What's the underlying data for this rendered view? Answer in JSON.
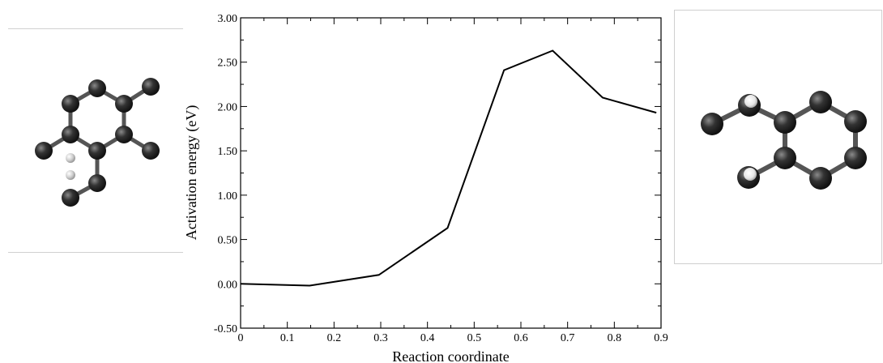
{
  "chart_data": {
    "type": "line",
    "title": "",
    "xlabel": "Reaction coordinate",
    "ylabel": "Activation energy (eV)",
    "xlim": [
      0,
      0.9
    ],
    "ylim": [
      -0.5,
      3.0
    ],
    "x_ticks": [
      0,
      0.1,
      0.2,
      0.3,
      0.4,
      0.5,
      0.6,
      0.7,
      0.8,
      0.9
    ],
    "x_tick_labels": [
      "0",
      "0.1",
      "0.2",
      "0.3",
      "0.4",
      "0.5",
      "0.6",
      "0.7",
      "0.8",
      "0.9"
    ],
    "y_ticks": [
      -0.5,
      0,
      0.5,
      1.0,
      1.5,
      2.0,
      2.5,
      3.0
    ],
    "y_tick_labels": [
      "-0.50",
      "0.00",
      "0.50",
      "1.00",
      "1.50",
      "2.00",
      "2.50",
      "3.00"
    ],
    "grid": false,
    "series": [
      {
        "x": [
          0,
          0.148,
          0.296,
          0.443,
          0.564,
          0.668,
          0.775,
          0.89
        ],
        "y": [
          0.0,
          -0.02,
          0.1,
          0.63,
          2.41,
          2.63,
          2.1,
          1.93
        ]
      }
    ]
  },
  "structures": {
    "left": {
      "carbon_color": "#2f2f2f",
      "hydrogen_color": "#dcdcdc"
    },
    "right": {
      "carbon_color": "#2f2f2f",
      "hydrogen_color": "#f2f2f2"
    }
  }
}
